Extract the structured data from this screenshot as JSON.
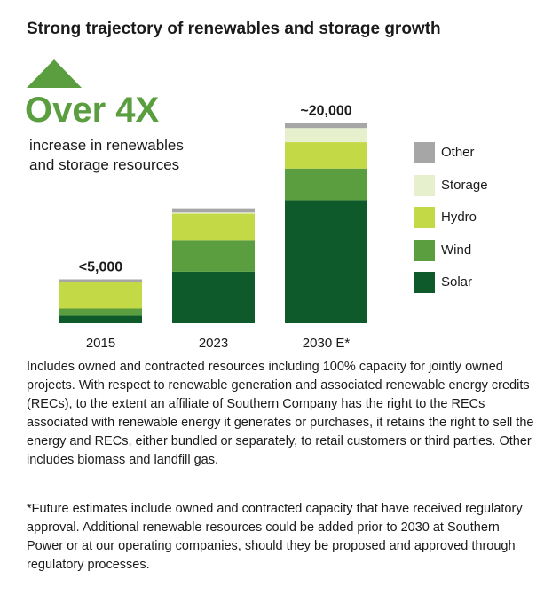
{
  "title": "Strong trajectory of renewables and storage growth",
  "headline": "Over 4X",
  "subheadline": "increase in renewables and storage resources",
  "colors": {
    "solar": "#0f5a2b",
    "wind": "#5a9e3f",
    "hydro": "#c3d945",
    "storage": "#e7f0cc",
    "other": "#a6a6a6",
    "accent": "#5a9e3f"
  },
  "chart_data": {
    "type": "bar",
    "stacked": true,
    "categories": [
      "2015",
      "2023",
      "2030 E*"
    ],
    "series": [
      {
        "name": "Solar",
        "color": "#0f5a2b",
        "values": [
          650,
          4400,
          10500
        ]
      },
      {
        "name": "Wind",
        "color": "#5a9e3f",
        "values": [
          600,
          2700,
          2700
        ]
      },
      {
        "name": "Hydro",
        "color": "#c3d945",
        "values": [
          2250,
          2250,
          2250
        ]
      },
      {
        "name": "Storage",
        "color": "#e7f0cc",
        "values": [
          0,
          100,
          1200
        ]
      },
      {
        "name": "Other",
        "color": "#a6a6a6",
        "values": [
          250,
          350,
          450
        ]
      }
    ],
    "bar_labels": [
      "<5,000",
      "",
      "~20,000"
    ],
    "ylim": [
      0,
      20000
    ],
    "grid": false,
    "legend": "right"
  },
  "legend_order": [
    "Other",
    "Storage",
    "Hydro",
    "Wind",
    "Solar"
  ],
  "notes": [
    "Includes owned and contracted resources including 100% capacity for jointly owned projects. With respect to renewable generation and associated renewable energy credits (RECs), to the extent an affiliate of Southern Company has the right to the RECs associated with renewable energy it generates or purchases, it retains the right to sell the energy and RECs, either bundled or separately, to retail customers or third parties. Other includes biomass and landfill gas.",
    "*Future estimates include owned and contracted capacity that have received regulatory approval. Additional renewable resources could be added prior to 2030 at Southern Power or at our operating companies, should they be proposed and approved through regulatory processes."
  ]
}
